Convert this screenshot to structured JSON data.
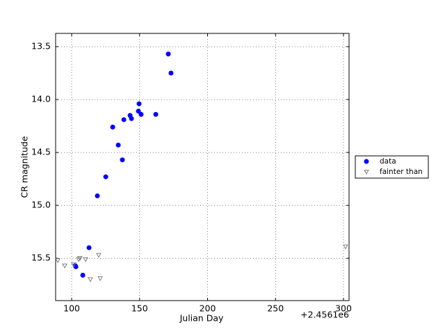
{
  "chart_data": {
    "type": "scatter",
    "x_label": "Julian Day",
    "y_label": "CR magnitude",
    "x_offset_label": "+2.4561e6",
    "xlim": [
      88.2,
      304.1
    ],
    "ylim": [
      15.9,
      13.375
    ],
    "xticks": [
      100,
      150,
      200,
      250,
      300
    ],
    "yticks": [
      {
        "value": 13.5,
        "label": "13.5"
      },
      {
        "value": 14.0,
        "label": "14.0"
      },
      {
        "value": 14.5,
        "label": "14.5"
      },
      {
        "value": 15.0,
        "label": "15.0"
      },
      {
        "value": 15.5,
        "label": "15.5"
      }
    ],
    "grid": true,
    "legend": "outside-right",
    "series": [
      {
        "name": "data",
        "color": "#0000ff",
        "marker": "circle",
        "x": [
          171.1,
          173.1,
          149.6,
          149.1,
          151.1,
          161.9,
          143.0,
          144.0,
          138.4,
          130.2,
          134.3,
          137.3,
          125.1,
          118.9,
          112.8,
          102.6,
          103.1,
          108.2
        ],
        "values": [
          13.57,
          13.75,
          14.04,
          14.11,
          14.14,
          14.14,
          14.15,
          14.18,
          14.19,
          14.26,
          14.43,
          14.57,
          14.73,
          14.91,
          15.4,
          15.57,
          15.58,
          15.66
        ]
      },
      {
        "name": "fainter than",
        "color": "#808080",
        "marker": "triangle-down",
        "x": [
          89.8,
          94.9,
          101.5,
          105.1,
          106.1,
          110.2,
          119.9,
          113.8,
          121.0,
          301.5
        ],
        "values": [
          15.52,
          15.57,
          15.56,
          15.51,
          15.5,
          15.51,
          15.47,
          15.7,
          15.69,
          15.39
        ]
      }
    ]
  }
}
